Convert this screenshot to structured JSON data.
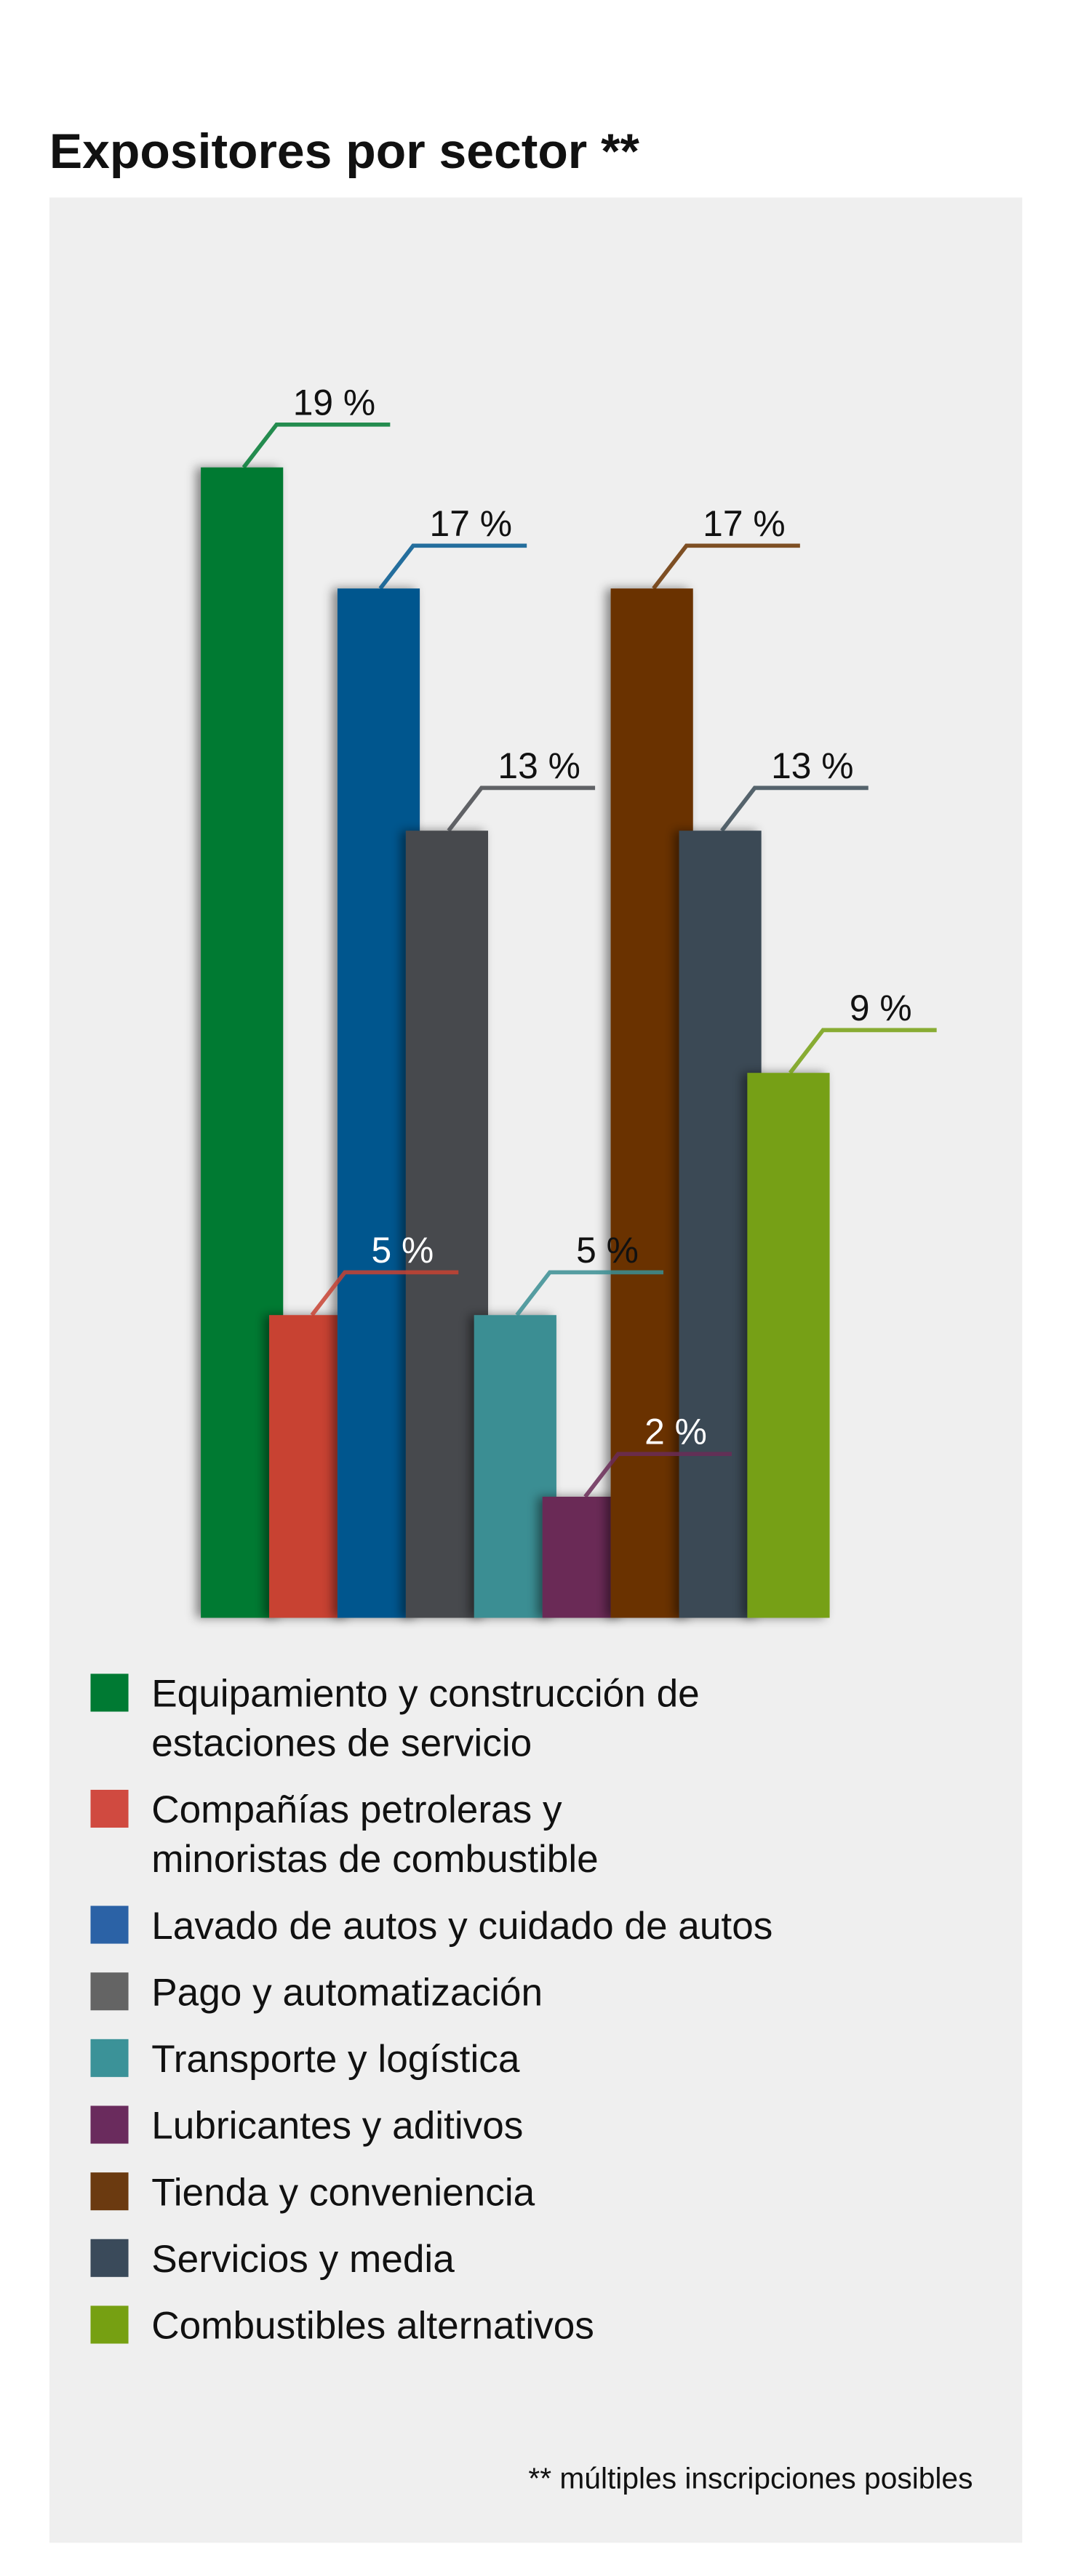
{
  "chart_data": {
    "type": "bar",
    "title": "Expositores por sector **",
    "categories": [
      "Equipamiento y construcción de\nestaciones de servicio",
      "Compañías petroleras y\nminoristas de combustible",
      "Lavado de autos y cuidado de autos",
      "Pago y automatización",
      "Transporte y logística",
      "Lubricantes y aditivos",
      "Tienda y conveniencia",
      "Servicios y media",
      "Combustibles alternativos"
    ],
    "values": [
      19,
      5,
      17,
      13,
      5,
      2,
      17,
      13,
      9
    ],
    "value_labels": [
      "19 %",
      "5 %",
      "17 %",
      "13 %",
      "5 %",
      "2 %",
      "17 %",
      "13 %",
      "9 %"
    ],
    "colors": [
      "#007a33",
      "#c84233",
      "#00578e",
      "#46494e",
      "#3a8e93",
      "#6a2b57",
      "#6a3300",
      "#3a4a55",
      "#76a012"
    ],
    "legend_colors": [
      "#007a33",
      "#d04a40",
      "#2b62a6",
      "#646464",
      "#3b9298",
      "#6a2b5d",
      "#6b3a10",
      "#3a4a5a",
      "#76a012"
    ],
    "label_colors": [
      "#111111",
      "#ffffff",
      "#111111",
      "#111111",
      "#111111",
      "#ffffff",
      "#111111",
      "#111111",
      "#111111"
    ],
    "note": "** múltiples inscripciones posibles"
  }
}
